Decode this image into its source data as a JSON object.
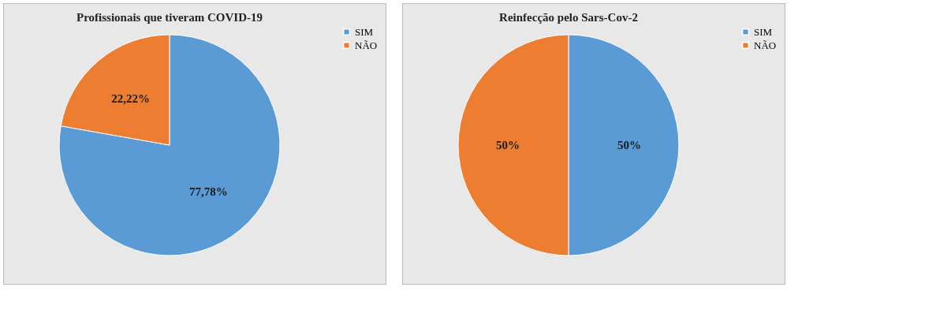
{
  "chart_data": [
    {
      "type": "pie",
      "title": "Profissionais que tiveram COVID-19",
      "categories": [
        "SIM",
        "NÃO"
      ],
      "values": [
        77.78,
        22.22
      ],
      "colors": [
        "#5b9bd5",
        "#ed7d31"
      ],
      "value_labels": [
        "77,78%",
        "22,22%"
      ],
      "legend": "right"
    },
    {
      "type": "pie",
      "title": "Reinfecção pelo Sars-Cov-2",
      "categories": [
        "SIM",
        "NÃO"
      ],
      "values": [
        50,
        50
      ],
      "colors": [
        "#5b9bd5",
        "#ed7d31"
      ],
      "value_labels": [
        "50%",
        "50%"
      ],
      "legend": "right"
    }
  ]
}
